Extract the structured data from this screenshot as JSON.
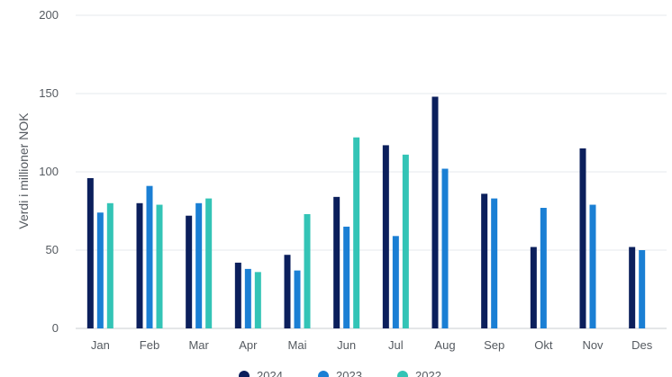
{
  "chart_data": {
    "type": "bar",
    "ylabel": "Verdi i millioner NOK",
    "xlabel": "",
    "ylim": [
      0,
      200
    ],
    "yticks": [
      "0",
      "50",
      "100",
      "150",
      "200"
    ],
    "grid": true,
    "legend_position": "bottom",
    "categories": [
      "Jan",
      "Feb",
      "Mar",
      "Apr",
      "Mai",
      "Jun",
      "Jul",
      "Aug",
      "Sep",
      "Okt",
      "Nov",
      "Des"
    ],
    "series": [
      {
        "name": "2024",
        "color": "#0b1f5c",
        "values": [
          96,
          80,
          72,
          42,
          47,
          84,
          117,
          148,
          86,
          52,
          115,
          52
        ]
      },
      {
        "name": "2023",
        "color": "#1a7fd4",
        "values": [
          74,
          91,
          80,
          38,
          37,
          65,
          59,
          102,
          83,
          77,
          79,
          50
        ]
      },
      {
        "name": "2022",
        "color": "#33c4b6",
        "values": [
          80,
          79,
          83,
          36,
          73,
          122,
          111,
          null,
          null,
          null,
          null,
          null
        ]
      }
    ]
  }
}
